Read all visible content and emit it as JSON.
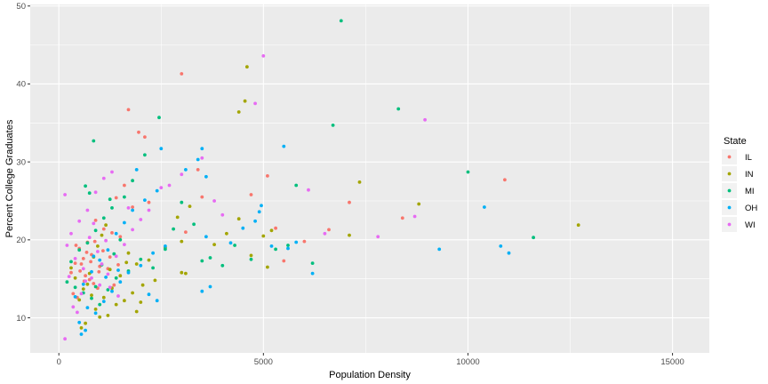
{
  "chart_data": {
    "type": "scatter",
    "title": "",
    "xlabel": "Population Density",
    "ylabel": "Percent College Graduates",
    "xlim": [
      -700,
      15900
    ],
    "ylim": [
      5.5,
      50.2
    ],
    "x_ticks": [
      0,
      5000,
      10000,
      15000
    ],
    "y_ticks": [
      10,
      20,
      30,
      40,
      50
    ],
    "x_tick_labels": [
      "0",
      "5000",
      "10000",
      "15000"
    ],
    "y_tick_labels": [
      "10",
      "20",
      "30",
      "40",
      "50"
    ],
    "grid": true,
    "legend": {
      "title": "State",
      "position": "right"
    },
    "series": [
      {
        "name": "IL",
        "color": "#F8766D",
        "points": [
          [
            1700,
            36.7
          ],
          [
            1950,
            33.8
          ],
          [
            2100,
            33.2
          ],
          [
            3000,
            41.3
          ],
          [
            1600,
            27.0
          ],
          [
            1400,
            25.4
          ],
          [
            1800,
            24.2
          ],
          [
            2200,
            24.8
          ],
          [
            900,
            22.5
          ],
          [
            1100,
            21.4
          ],
          [
            1300,
            20.9
          ],
          [
            1500,
            20.4
          ],
          [
            700,
            19.7
          ],
          [
            500,
            18.9
          ],
          [
            800,
            18.1
          ],
          [
            600,
            17.6
          ],
          [
            400,
            17.0
          ],
          [
            1000,
            16.6
          ],
          [
            1200,
            16.3
          ],
          [
            300,
            15.8
          ],
          [
            650,
            15.4
          ],
          [
            750,
            14.9
          ],
          [
            850,
            14.4
          ],
          [
            950,
            13.8
          ],
          [
            350,
            13.1
          ],
          [
            450,
            12.6
          ],
          [
            550,
            16.9
          ],
          [
            680,
            18.4
          ],
          [
            780,
            17.2
          ],
          [
            880,
            19.8
          ],
          [
            980,
            15.9
          ],
          [
            1080,
            18.6
          ],
          [
            420,
            19.3
          ],
          [
            520,
            16.0
          ],
          [
            620,
            14.7
          ],
          [
            3400,
            29.0
          ],
          [
            3500,
            25.5
          ],
          [
            3100,
            21.0
          ],
          [
            4700,
            25.8
          ],
          [
            5100,
            28.2
          ],
          [
            5300,
            21.5
          ],
          [
            5500,
            17.3
          ],
          [
            6000,
            19.8
          ],
          [
            6600,
            21.3
          ],
          [
            7100,
            24.8
          ],
          [
            8400,
            22.8
          ],
          [
            10900,
            27.7
          ],
          [
            1250,
            17.8
          ],
          [
            1350,
            14.2
          ],
          [
            1450,
            16.8
          ]
        ]
      },
      {
        "name": "IN",
        "color": "#A3A500",
        "points": [
          [
            4600,
            42.2
          ],
          [
            4400,
            36.4
          ],
          [
            4550,
            37.8
          ],
          [
            3200,
            24.3
          ],
          [
            2900,
            22.9
          ],
          [
            3000,
            19.8
          ],
          [
            2600,
            19.0
          ],
          [
            3100,
            15.7
          ],
          [
            2350,
            14.8
          ],
          [
            2200,
            17.4
          ],
          [
            1900,
            16.9
          ],
          [
            1700,
            18.3
          ],
          [
            1500,
            15.4
          ],
          [
            1300,
            13.8
          ],
          [
            1100,
            12.6
          ],
          [
            1200,
            10.3
          ],
          [
            900,
            11.1
          ],
          [
            800,
            12.9
          ],
          [
            700,
            14.3
          ],
          [
            600,
            13.7
          ],
          [
            500,
            12.3
          ],
          [
            400,
            15.1
          ],
          [
            300,
            16.4
          ],
          [
            1000,
            10.1
          ],
          [
            1400,
            11.7
          ],
          [
            1600,
            12.2
          ],
          [
            1800,
            13.2
          ],
          [
            2000,
            12.0
          ],
          [
            1900,
            10.8
          ],
          [
            650,
            9.3
          ],
          [
            550,
            8.7
          ],
          [
            750,
            15.7
          ],
          [
            850,
            17.8
          ],
          [
            950,
            19.2
          ],
          [
            1050,
            20.6
          ],
          [
            1150,
            21.9
          ],
          [
            3800,
            19.4
          ],
          [
            4100,
            20.8
          ],
          [
            4400,
            22.7
          ],
          [
            5000,
            20.5
          ],
          [
            5200,
            21.2
          ],
          [
            5100,
            16.5
          ],
          [
            4700,
            18.0
          ],
          [
            7100,
            20.6
          ],
          [
            7350,
            27.4
          ],
          [
            8800,
            24.6
          ],
          [
            12700,
            21.9
          ],
          [
            3000,
            15.8
          ],
          [
            2050,
            14.2
          ],
          [
            1650,
            17.1
          ],
          [
            1250,
            16.2
          ]
        ]
      },
      {
        "name": "MI",
        "color": "#00BF7D",
        "points": [
          [
            6900,
            48.1
          ],
          [
            8300,
            36.8
          ],
          [
            6700,
            34.7
          ],
          [
            2450,
            35.7
          ],
          [
            2100,
            30.9
          ],
          [
            850,
            32.7
          ],
          [
            1800,
            27.6
          ],
          [
            1600,
            25.5
          ],
          [
            1300,
            24.1
          ],
          [
            1100,
            22.8
          ],
          [
            900,
            21.2
          ],
          [
            700,
            19.6
          ],
          [
            500,
            18.7
          ],
          [
            300,
            17.2
          ],
          [
            200,
            14.6
          ],
          [
            400,
            13.9
          ],
          [
            600,
            13.2
          ],
          [
            800,
            12.5
          ],
          [
            1000,
            11.7
          ],
          [
            1200,
            13.6
          ],
          [
            1400,
            15.1
          ],
          [
            1700,
            16.0
          ],
          [
            2000,
            17.5
          ],
          [
            2300,
            16.4
          ],
          [
            2600,
            18.8
          ],
          [
            1500,
            20.0
          ],
          [
            650,
            26.9
          ],
          [
            750,
            26.0
          ],
          [
            1250,
            25.2
          ],
          [
            2800,
            21.4
          ],
          [
            3000,
            24.8
          ],
          [
            3300,
            22.0
          ],
          [
            3500,
            17.3
          ],
          [
            3700,
            17.7
          ],
          [
            4000,
            16.7
          ],
          [
            4300,
            19.3
          ],
          [
            4700,
            17.5
          ],
          [
            5300,
            18.8
          ],
          [
            5600,
            19.3
          ],
          [
            5800,
            27.0
          ],
          [
            6200,
            17.0
          ],
          [
            10000,
            28.7
          ],
          [
            11600,
            20.3
          ],
          [
            900,
            14.0
          ],
          [
            1050,
            16.8
          ],
          [
            1350,
            18.2
          ]
        ]
      },
      {
        "name": "OH",
        "color": "#00B0F6",
        "points": [
          [
            3500,
            31.7
          ],
          [
            3400,
            30.3
          ],
          [
            3600,
            28.1
          ],
          [
            2500,
            31.7
          ],
          [
            3100,
            29.0
          ],
          [
            2400,
            26.3
          ],
          [
            1900,
            29.0
          ],
          [
            2100,
            25.1
          ],
          [
            1800,
            23.8
          ],
          [
            1600,
            22.2
          ],
          [
            1400,
            20.8
          ],
          [
            1200,
            18.7
          ],
          [
            1000,
            17.4
          ],
          [
            800,
            15.9
          ],
          [
            600,
            14.3
          ],
          [
            400,
            12.7
          ],
          [
            700,
            11.3
          ],
          [
            900,
            10.6
          ],
          [
            1100,
            12.1
          ],
          [
            1300,
            13.4
          ],
          [
            1500,
            14.6
          ],
          [
            1700,
            15.8
          ],
          [
            2000,
            16.7
          ],
          [
            2300,
            18.3
          ],
          [
            2600,
            19.2
          ],
          [
            500,
            9.4
          ],
          [
            550,
            7.9
          ],
          [
            650,
            8.4
          ],
          [
            2400,
            12.2
          ],
          [
            2200,
            13.0
          ],
          [
            3500,
            13.4
          ],
          [
            3700,
            14.0
          ],
          [
            3600,
            20.4
          ],
          [
            4200,
            19.6
          ],
          [
            4500,
            21.5
          ],
          [
            4800,
            22.4
          ],
          [
            4900,
            23.6
          ],
          [
            4950,
            24.4
          ],
          [
            5500,
            32.0
          ],
          [
            5600,
            18.9
          ],
          [
            5800,
            19.7
          ],
          [
            5200,
            19.2
          ],
          [
            6200,
            15.7
          ],
          [
            9300,
            18.8
          ],
          [
            10400,
            24.2
          ],
          [
            10800,
            19.2
          ],
          [
            11000,
            18.3
          ],
          [
            1150,
            15.2
          ],
          [
            1450,
            16.1
          ],
          [
            850,
            17.9
          ]
        ]
      },
      {
        "name": "WI",
        "color": "#E76BF3",
        "points": [
          [
            5000,
            43.6
          ],
          [
            4800,
            37.5
          ],
          [
            8950,
            35.4
          ],
          [
            3500,
            30.5
          ],
          [
            3000,
            28.4
          ],
          [
            2500,
            26.7
          ],
          [
            1100,
            27.9
          ],
          [
            1300,
            28.7
          ],
          [
            900,
            26.1
          ],
          [
            700,
            23.8
          ],
          [
            500,
            22.4
          ],
          [
            300,
            20.8
          ],
          [
            200,
            19.3
          ],
          [
            150,
            25.8
          ],
          [
            400,
            17.6
          ],
          [
            600,
            16.3
          ],
          [
            800,
            15.1
          ],
          [
            1000,
            14.2
          ],
          [
            1200,
            15.6
          ],
          [
            1400,
            17.9
          ],
          [
            1600,
            19.4
          ],
          [
            1800,
            21.3
          ],
          [
            2000,
            22.6
          ],
          [
            250,
            15.3
          ],
          [
            350,
            11.4
          ],
          [
            450,
            10.7
          ],
          [
            150,
            7.3
          ],
          [
            550,
            13.1
          ],
          [
            650,
            14.7
          ],
          [
            750,
            20.3
          ],
          [
            850,
            22.1
          ],
          [
            950,
            18.5
          ],
          [
            1050,
            16.9
          ],
          [
            1150,
            19.9
          ],
          [
            3800,
            25.0
          ],
          [
            4000,
            23.2
          ],
          [
            6100,
            26.4
          ],
          [
            6500,
            20.8
          ],
          [
            7800,
            20.4
          ],
          [
            8700,
            23.0
          ],
          [
            2200,
            23.8
          ],
          [
            2700,
            27.0
          ],
          [
            1700,
            24.1
          ],
          [
            1250,
            13.9
          ],
          [
            1450,
            12.8
          ]
        ]
      }
    ]
  }
}
